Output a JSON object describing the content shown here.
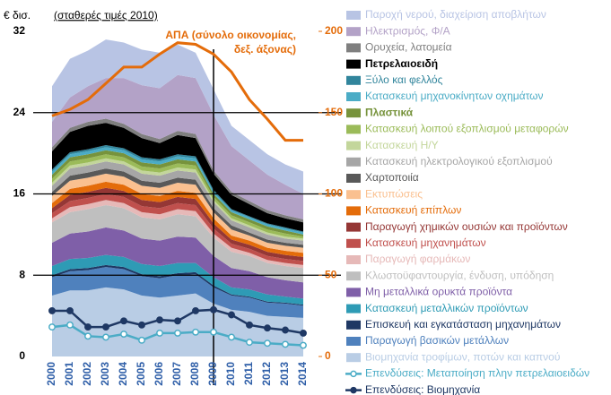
{
  "chart_data": {
    "type": "stacked-area",
    "y_label": "€ δισ.",
    "y_sublabel": "(σταθερές τιμές 2010)",
    "annotation": [
      "ΑΠΑ (σύνολο οικονομίας,",
      "δεξ. άξονας)"
    ],
    "categories": [
      "2000",
      "2001",
      "2002",
      "2003",
      "2004",
      "2005",
      "2006",
      "2007",
      "2008",
      "2009",
      "2010",
      "2011",
      "2012",
      "2013",
      "2014"
    ],
    "vline": "2009",
    "ylim": [
      0,
      32
    ],
    "yticks": [
      0,
      8,
      16,
      24,
      32
    ],
    "y2lim": [
      0,
      200
    ],
    "y2ticks": [
      0,
      50,
      100,
      150,
      200
    ],
    "grid": true,
    "series": [
      {
        "name": "Παροχή νερού, διαχείριση αποβλήτων",
        "color": "#b8c4e4",
        "values": [
          3.5,
          3.8,
          3.5,
          3.8,
          3.5,
          3.5,
          3.5,
          3.0,
          2.5,
          2.5,
          2.0,
          2.0,
          2.0,
          2.0,
          2.2
        ]
      },
      {
        "name": "Ηλεκτρισμός, Φ/Α",
        "color": "#b3a2c7",
        "values": [
          2.5,
          3.0,
          3.5,
          4.0,
          4.5,
          4.8,
          5.0,
          5.5,
          5.5,
          5.5,
          4.5,
          4.0,
          3.5,
          3.0,
          2.5
        ]
      },
      {
        "name": "Ορυχεία, λατομεία",
        "color": "#7f7f7f",
        "values": [
          0.4,
          0.4,
          0.4,
          0.4,
          0.4,
          0.4,
          0.4,
          0.4,
          0.4,
          0.3,
          0.3,
          0.3,
          0.3,
          0.3,
          0.3
        ]
      },
      {
        "name": "Πετρελαιοειδή",
        "color": "#000000",
        "values": [
          1.8,
          2.0,
          2.3,
          2.2,
          2.0,
          1.9,
          1.6,
          1.9,
          1.8,
          1.6,
          1.4,
          1.2,
          1.0,
          0.9,
          0.9
        ]
      },
      {
        "name": "Ξύλο και φελλός",
        "color": "#31859c",
        "values": [
          0.2,
          0.2,
          0.2,
          0.2,
          0.2,
          0.2,
          0.2,
          0.2,
          0.2,
          0.2,
          0.1,
          0.1,
          0.1,
          0.1,
          0.1
        ]
      },
      {
        "name": "Κατασκευή μηχανοκίνητων οχημάτων",
        "color": "#4bacc6",
        "values": [
          0.3,
          0.3,
          0.3,
          0.3,
          0.3,
          0.3,
          0.3,
          0.3,
          0.3,
          0.2,
          0.2,
          0.2,
          0.2,
          0.2,
          0.2
        ]
      },
      {
        "name": "Πλαστικά",
        "color": "#77933c",
        "values": [
          0.4,
          0.4,
          0.4,
          0.4,
          0.4,
          0.4,
          0.4,
          0.4,
          0.4,
          0.3,
          0.3,
          0.3,
          0.3,
          0.3,
          0.2
        ]
      },
      {
        "name": "Κατασκευή λοιπού εξοπλισμού μεταφορών",
        "color": "#9bbb59",
        "values": [
          0.4,
          0.4,
          0.4,
          0.4,
          0.4,
          0.4,
          0.4,
          0.4,
          0.4,
          0.3,
          0.3,
          0.3,
          0.3,
          0.3,
          0.2
        ]
      },
      {
        "name": "Κατασκευή Η/Υ",
        "color": "#c3d69b",
        "values": [
          0.3,
          0.3,
          0.3,
          0.3,
          0.3,
          0.3,
          0.3,
          0.3,
          0.3,
          0.2,
          0.2,
          0.2,
          0.2,
          0.2,
          0.2
        ]
      },
      {
        "name": "Κατασκευή ηλεκτρολογικού εξοπλισμού",
        "color": "#a6a6a6",
        "values": [
          0.6,
          0.7,
          0.7,
          0.7,
          0.7,
          0.7,
          0.7,
          0.7,
          0.7,
          0.6,
          0.5,
          0.5,
          0.5,
          0.4,
          0.4
        ]
      },
      {
        "name": "Χαρτοποιία",
        "color": "#595959",
        "values": [
          0.4,
          0.5,
          0.5,
          0.5,
          0.5,
          0.5,
          0.5,
          0.5,
          0.5,
          0.4,
          0.4,
          0.3,
          0.3,
          0.3,
          0.3
        ]
      },
      {
        "name": "Εκτυπώσεις",
        "color": "#fac090",
        "values": [
          0.7,
          0.8,
          0.8,
          0.8,
          0.8,
          0.8,
          0.8,
          0.8,
          0.8,
          0.6,
          0.6,
          0.5,
          0.5,
          0.5,
          0.5
        ]
      },
      {
        "name": "Κατασκευή επίπλων",
        "color": "#e46c0a",
        "values": [
          0.5,
          0.6,
          0.6,
          0.6,
          0.6,
          0.6,
          0.6,
          0.6,
          0.6,
          0.5,
          0.4,
          0.4,
          0.4,
          0.4,
          0.4
        ]
      },
      {
        "name": "Παραγωγή χημικών ουσιών και προϊόντων",
        "color": "#953735",
        "values": [
          0.5,
          0.6,
          0.6,
          0.6,
          0.6,
          0.6,
          0.6,
          0.6,
          0.6,
          0.5,
          0.4,
          0.4,
          0.4,
          0.4,
          0.4
        ]
      },
      {
        "name": "Κατασκευή μηχανημάτων",
        "color": "#c0504d",
        "values": [
          0.5,
          0.6,
          0.6,
          0.6,
          0.6,
          0.6,
          0.6,
          0.6,
          0.6,
          0.5,
          0.4,
          0.4,
          0.4,
          0.4,
          0.4
        ]
      },
      {
        "name": "Παραγωγή φαρμάκων",
        "color": "#e6b9b8",
        "values": [
          0.4,
          0.5,
          0.5,
          0.5,
          0.5,
          0.5,
          0.5,
          0.5,
          0.5,
          0.4,
          0.4,
          0.3,
          0.3,
          0.3,
          0.3
        ]
      },
      {
        "name": "Κλωστοϋφαντουργία, ένδυση, υπόδηση",
        "color": "#bfbfbf",
        "values": [
          2.0,
          2.1,
          2.2,
          2.2,
          2.2,
          2.1,
          2.1,
          2.2,
          2.1,
          1.8,
          1.6,
          1.5,
          1.4,
          1.4,
          1.4
        ]
      },
      {
        "name": "Μη μεταλλικά ορυκτά προϊόντα",
        "color": "#7f5fa8",
        "values": [
          2.3,
          2.5,
          2.6,
          2.7,
          2.6,
          2.5,
          2.5,
          2.6,
          2.5,
          2.1,
          1.9,
          1.8,
          1.7,
          1.6,
          1.6
        ]
      },
      {
        "name": "Κατασκευή μεταλλικών προϊόντων",
        "color": "#2e9bb5",
        "values": [
          0.9,
          1.0,
          1.0,
          1.0,
          1.0,
          1.0,
          1.0,
          1.0,
          0.9,
          0.8,
          0.7,
          0.7,
          0.7,
          0.6,
          0.6
        ]
      },
      {
        "name": "Επισκευή και εγκατάσταση μηχανημάτων",
        "color": "#1f3864",
        "values": [
          0.2,
          0.2,
          0.2,
          0.2,
          0.2,
          0.2,
          0.2,
          0.2,
          0.2,
          0.2,
          0.1,
          0.1,
          0.1,
          0.1,
          0.1
        ]
      },
      {
        "name": "Παραγωγή βασικών μετάλλων",
        "color": "#4f81bd",
        "values": [
          1.8,
          1.9,
          2.0,
          2.0,
          2.0,
          1.9,
          1.9,
          2.0,
          1.9,
          1.6,
          1.4,
          1.4,
          1.3,
          1.3,
          1.2
        ]
      },
      {
        "name": "Βιομηχανία τροφίμων, ποτών και καπνού",
        "color": "#b9cde5",
        "values": [
          6.0,
          6.5,
          6.5,
          6.8,
          6.6,
          6.0,
          5.8,
          6.0,
          6.2,
          5.2,
          4.6,
          4.4,
          4.0,
          3.9,
          3.8
        ]
      },
      {
        "name": "Επενδύσεις: Μεταποίηση πλην πετρελαιοειδών",
        "color": "#4bacc6",
        "type": "line",
        "marker": "open",
        "values": [
          2.9,
          3.1,
          2.0,
          1.9,
          2.2,
          1.6,
          2.3,
          2.3,
          2.4,
          2.4,
          1.9,
          1.4,
          1.3,
          1.2,
          1.1
        ]
      },
      {
        "name": "Επενδύσεις: Βιομηχανία",
        "color": "#1f3864",
        "type": "line",
        "marker": "filled",
        "values": [
          4.5,
          4.5,
          2.9,
          2.9,
          3.5,
          3.1,
          3.6,
          3.5,
          4.5,
          4.6,
          4.1,
          3.1,
          2.8,
          2.6,
          2.3
        ]
      },
      {
        "color": "#e46c0a",
        "type": "line",
        "axis": "y2",
        "values": [
          148,
          152,
          158,
          168,
          178,
          178,
          186,
          193,
          192,
          186,
          175,
          158,
          146,
          133,
          133
        ]
      }
    ]
  }
}
